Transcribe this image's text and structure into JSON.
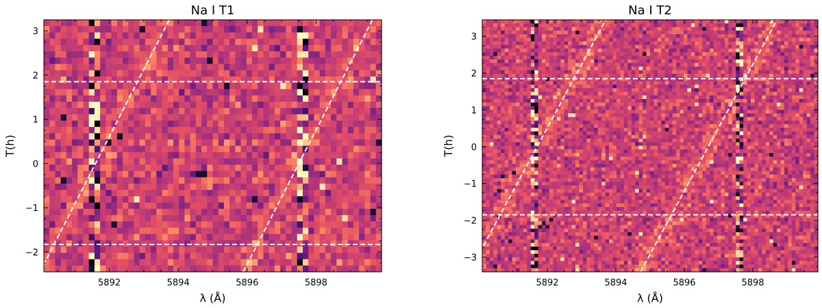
{
  "chart_data": [
    {
      "type": "heatmap",
      "title": "Na I T1",
      "xlabel": "λ (Å)",
      "ylabel": "T(h)",
      "xlim": [
        5890.1,
        5899.9
      ],
      "ylim": [
        -2.45,
        3.25
      ],
      "xticks": [
        5892,
        5894,
        5896,
        5898
      ],
      "yticks": [
        -2,
        -1,
        0,
        1,
        2,
        3
      ],
      "colormap": "magma",
      "absorption_lines_angstrom": [
        5891.6,
        5897.6
      ],
      "contact_times_h": [
        -1.83,
        1.85
      ],
      "planet_trace_slope_h_per_angstrom": 1.52,
      "planet_trace_zero_crossing_angstrom": [
        5891.6,
        5897.5
      ],
      "grid": false
    },
    {
      "type": "heatmap",
      "title": "Na I T2",
      "xlabel": "λ (Å)",
      "ylabel": "T(h)",
      "xlim": [
        5890.1,
        5899.9
      ],
      "ylim": [
        -3.4,
        3.45
      ],
      "xticks": [
        5892,
        5894,
        5896,
        5898
      ],
      "yticks": [
        -3,
        -2,
        -1,
        0,
        1,
        2,
        3
      ],
      "colormap": "magma",
      "absorption_lines_angstrom": [
        5891.6,
        5897.6
      ],
      "contact_times_h": [
        -1.85,
        1.85
      ],
      "planet_trace_slope_h_per_angstrom": 1.72,
      "planet_trace_zero_crossing_angstrom": [
        5891.7,
        5896.7
      ],
      "grid": false
    }
  ]
}
